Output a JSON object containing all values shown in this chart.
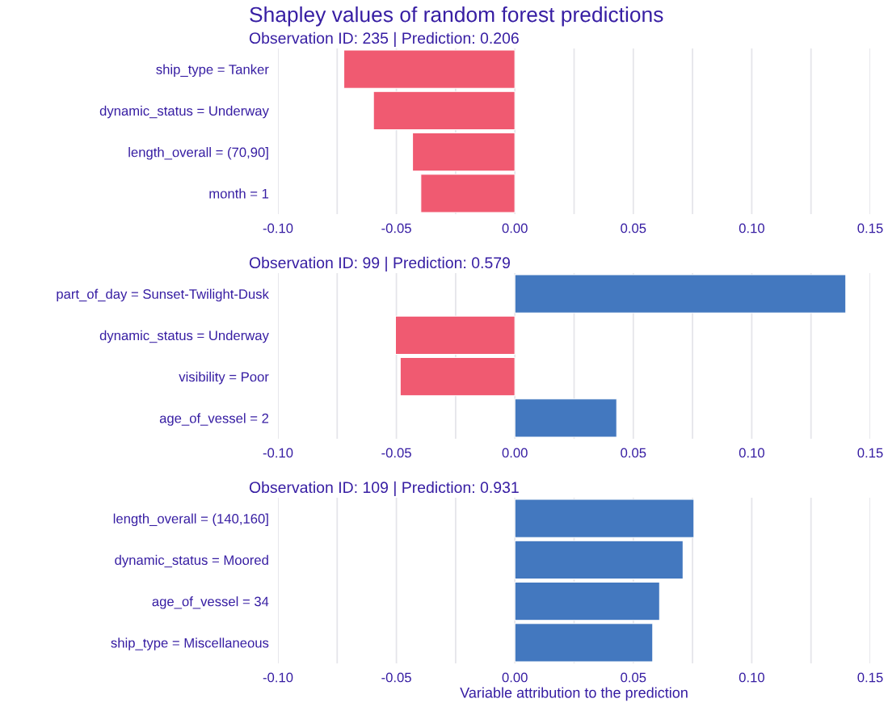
{
  "chart_data": [
    {
      "type": "bar",
      "orientation": "horizontal",
      "title": "Shapley values of random forest predictions",
      "subtitle": "Observation ID: 235 | Prediction: 0.206",
      "categories": [
        "ship_type = Tanker",
        "dynamic_status = Underway",
        "length_overall = (70,90]",
        "month = 1"
      ],
      "values": [
        -0.0722,
        -0.0597,
        -0.0432,
        -0.0397
      ],
      "colors": [
        "#f05a71",
        "#f05a71",
        "#f05a71",
        "#f05a71"
      ],
      "xlim": [
        -0.1,
        0.15
      ],
      "xticks": [
        {
          "value": -0.1,
          "label": "-0.10"
        },
        {
          "value": -0.075,
          "label": null
        },
        -0.05,
        {
          "value": -0.025,
          "label": null
        },
        {
          "value": 0,
          "label": "0.00"
        },
        {
          "value": 0.025,
          "label": null
        },
        {
          "value": 0.05,
          "label": "0.05"
        },
        {
          "value": 0.075,
          "label": null
        },
        {
          "value": 0.1,
          "label": "0.10"
        },
        {
          "value": 0.125,
          "label": null
        },
        0.15
      ],
      "grid": "x"
    },
    {
      "type": "bar",
      "orientation": "horizontal",
      "subtitle": "Observation ID: 99 | Prediction: 0.579",
      "categories": [
        "part_of_day = Sunset-Twilight-Dusk",
        "dynamic_status = Underway",
        "visibility = Poor",
        "age_of_vessel = 2"
      ],
      "values": [
        0.1397,
        -0.0504,
        -0.0484,
        0.043
      ],
      "colors": [
        "#4378bf",
        "#f05a71",
        "#f05a71",
        "#4378bf"
      ],
      "xlim": [
        -0.1,
        0.15
      ],
      "xticks": [
        {
          "value": -0.1,
          "label": "-0.10"
        },
        {
          "value": -0.075,
          "label": null
        },
        -0.05,
        {
          "value": -0.025,
          "label": null
        },
        {
          "value": 0,
          "label": "0.00"
        },
        {
          "value": 0.025,
          "label": null
        },
        {
          "value": 0.05,
          "label": "0.05"
        },
        {
          "value": 0.075,
          "label": null
        },
        {
          "value": 0.1,
          "label": "0.10"
        },
        {
          "value": 0.125,
          "label": null
        },
        0.15
      ],
      "grid": "x"
    },
    {
      "type": "bar",
      "orientation": "horizontal",
      "subtitle": "Observation ID: 109 | Prediction: 0.931",
      "xlabel": "Variable attribution to the prediction",
      "categories": [
        "length_overall = (140,160]",
        "dynamic_status = Moored",
        "age_of_vessel = 34",
        "ship_type = Miscellaneous"
      ],
      "values": [
        0.0756,
        0.071,
        0.0611,
        0.0582
      ],
      "colors": [
        "#4378bf",
        "#4378bf",
        "#4378bf",
        "#4378bf"
      ],
      "xlim": [
        -0.1,
        0.15
      ],
      "xticks": [
        {
          "value": -0.1,
          "label": "-0.10"
        },
        {
          "value": -0.075,
          "label": null
        },
        -0.05,
        {
          "value": -0.025,
          "label": null
        },
        {
          "value": 0,
          "label": "0.00"
        },
        {
          "value": 0.025,
          "label": null
        },
        {
          "value": 0.05,
          "label": "0.05"
        },
        {
          "value": 0.075,
          "label": null
        },
        {
          "value": 0.1,
          "label": "0.10"
        },
        {
          "value": 0.125,
          "label": null
        },
        0.15
      ],
      "grid": "x"
    }
  ]
}
